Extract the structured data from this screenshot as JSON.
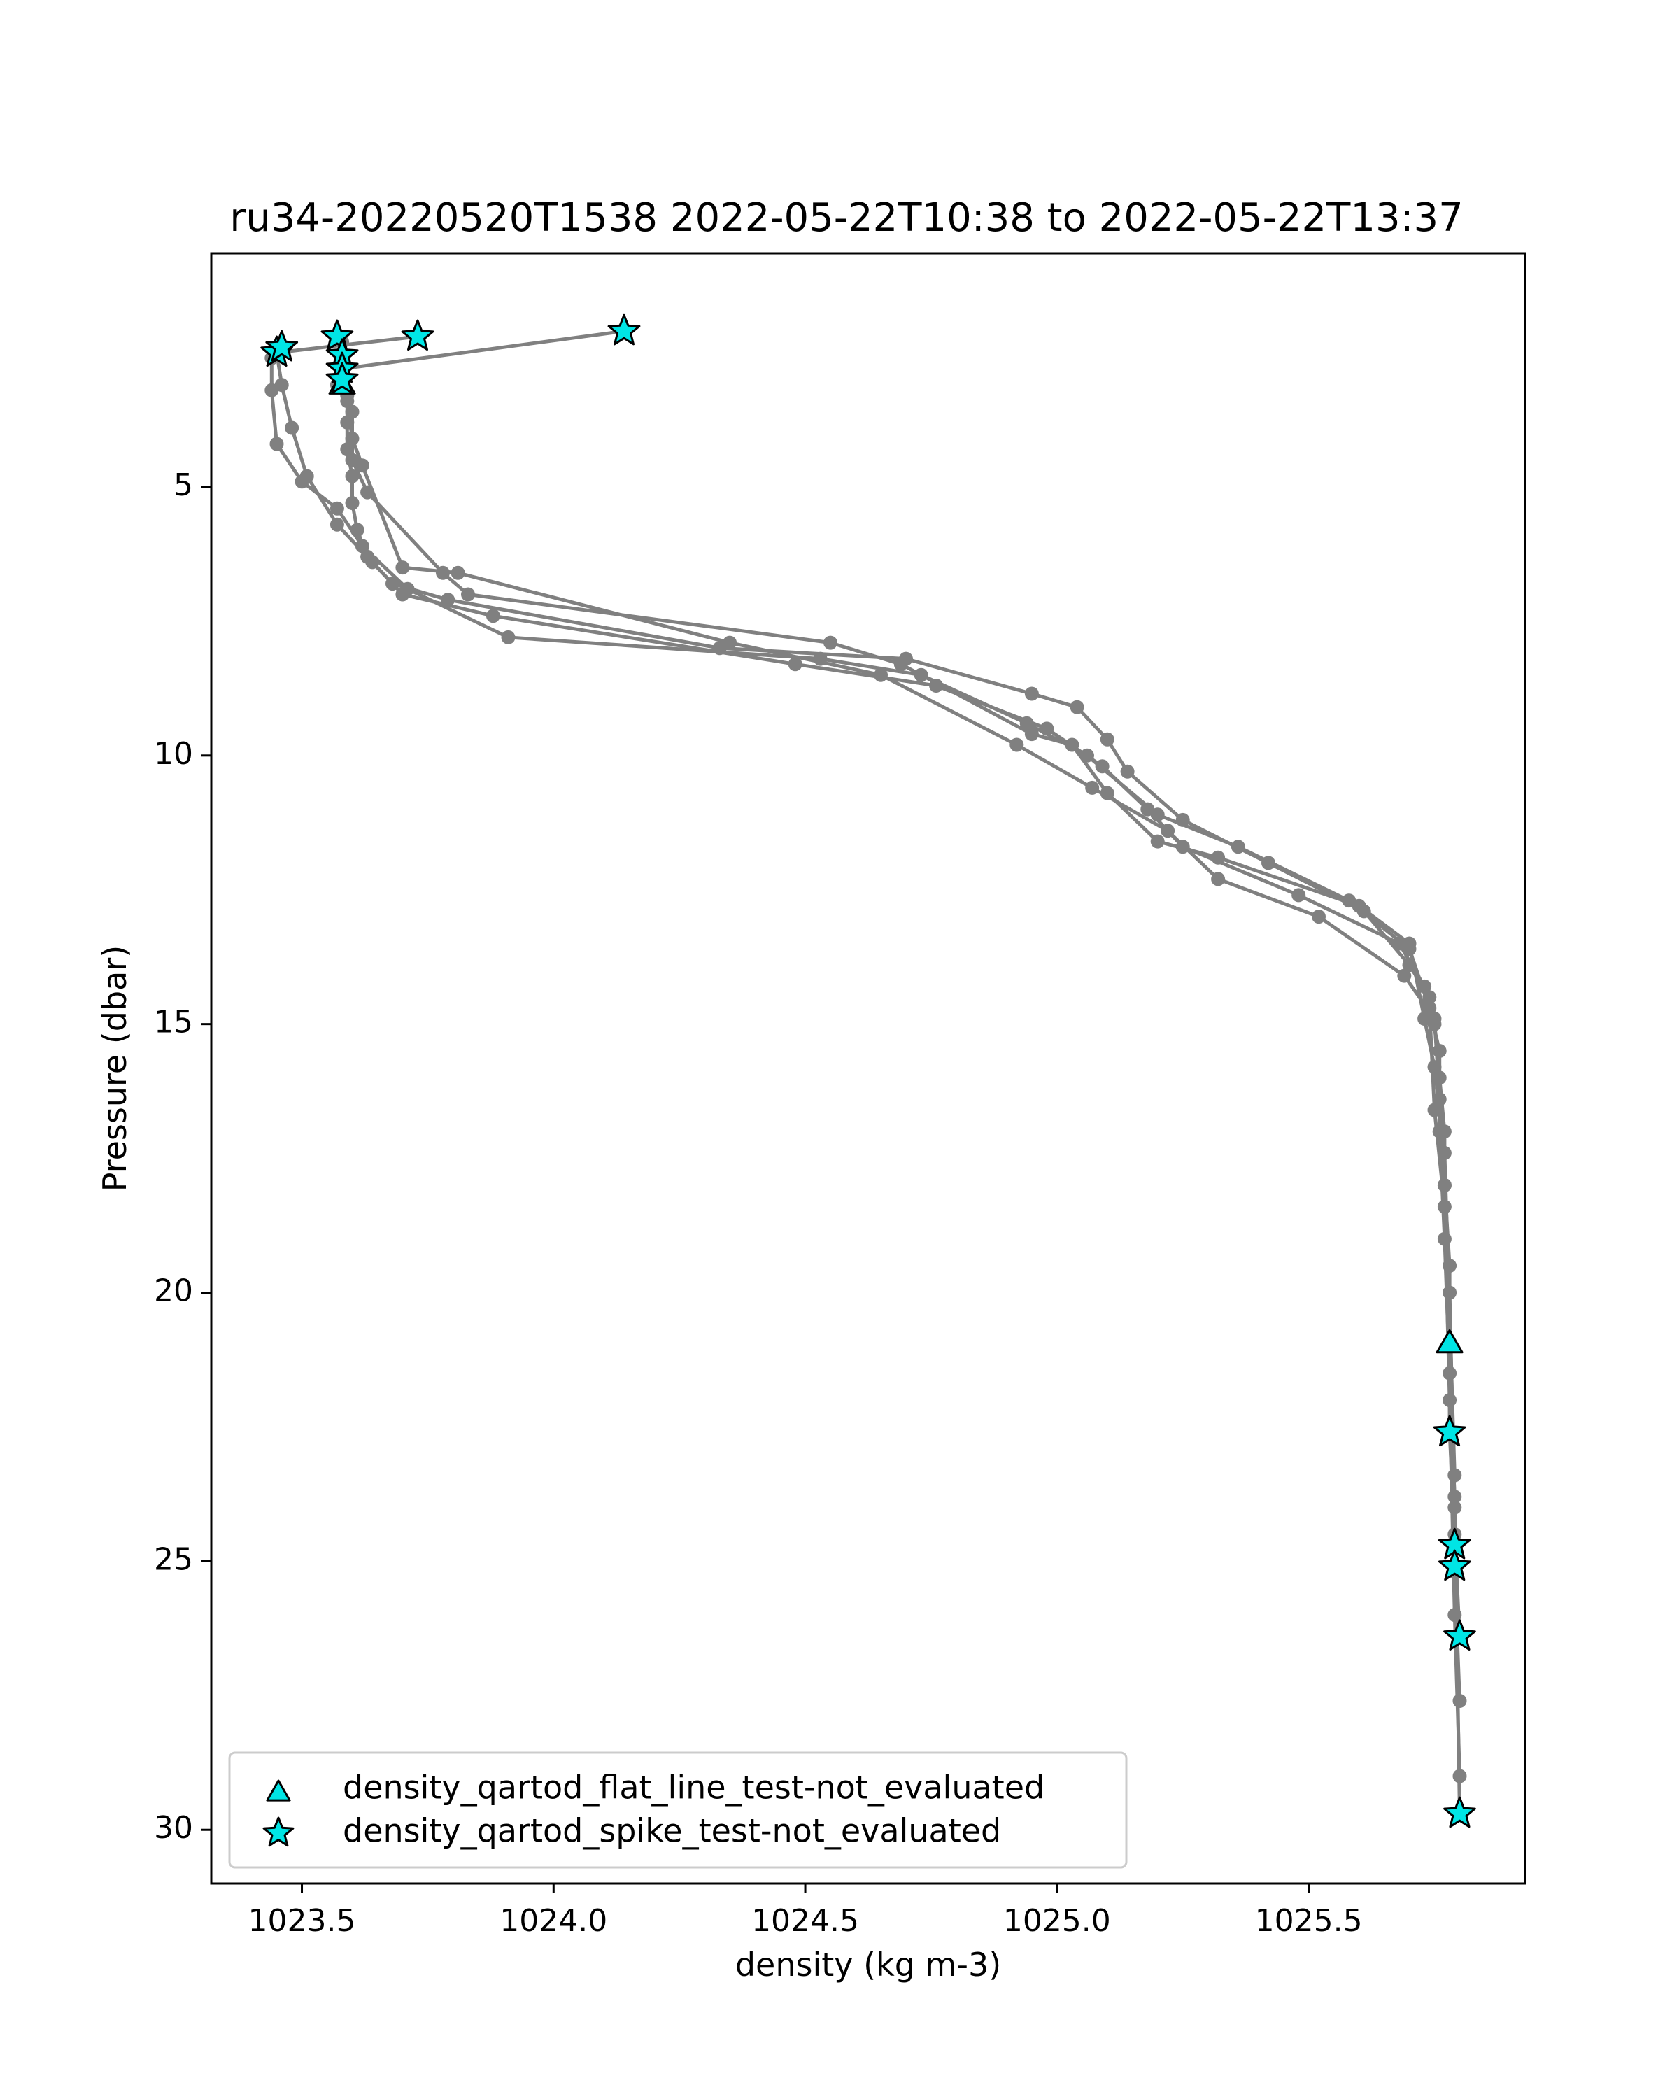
{
  "chart_data": {
    "type": "scatter",
    "title": "ru34-20220520T1538 2022-05-22T10:38 to 2022-05-22T13:37",
    "xlabel": "density (kg m-3)",
    "ylabel": "Pressure (dbar)",
    "xlim": [
      1023.32,
      1025.93
    ],
    "ylim": [
      31.0,
      0.65
    ],
    "y_inverted": true,
    "x_ticks": [
      1023.5,
      1024.0,
      1024.5,
      1025.0,
      1025.5
    ],
    "x_tick_labels": [
      "1023.5",
      "1024.0",
      "1024.5",
      "1025.0",
      "1025.5"
    ],
    "y_ticks": [
      5,
      10,
      15,
      20,
      25,
      30
    ],
    "y_tick_labels": [
      "5",
      "10",
      "15",
      "20",
      "25",
      "30"
    ],
    "grid": false,
    "legend_position": "lower-left",
    "colors": {
      "profile": "#808080",
      "flag_fill": "#00e5e5",
      "flag_edge": "#000000"
    },
    "profiles": [
      {
        "x": [
          1024.14,
          1023.58,
          1023.59,
          1023.59,
          1023.59,
          1023.6,
          1023.6,
          1023.61,
          1023.63,
          1023.68,
          1023.79,
          1024.33,
          1024.7,
          1024.95,
          1025.04,
          1025.1,
          1025.14,
          1025.25,
          1025.42,
          1025.61,
          1025.7,
          1025.74,
          1025.75,
          1025.76,
          1025.77,
          1025.77,
          1025.78,
          1025.78,
          1025.78,
          1025.79,
          1025.8
        ],
        "y": [
          2.1,
          2.8,
          3.3,
          3.8,
          4.3,
          4.8,
          5.3,
          5.8,
          6.3,
          6.8,
          7.1,
          8.0,
          8.2,
          8.85,
          9.1,
          9.7,
          10.3,
          11.2,
          12.0,
          12.9,
          13.9,
          14.5,
          15.0,
          16.0,
          17.0,
          18.0,
          19.5,
          21.0,
          22.6,
          24.5,
          26.4
        ]
      },
      {
        "x": [
          1023.73,
          1023.45,
          1023.46,
          1023.48,
          1023.51,
          1023.57,
          1023.64,
          1023.7,
          1023.88,
          1024.48,
          1024.76,
          1024.98,
          1025.09,
          1025.18,
          1025.25,
          1025.48,
          1025.68,
          1025.73,
          1025.76,
          1025.76,
          1025.77,
          1025.78,
          1025.79,
          1025.79,
          1025.8
        ],
        "y": [
          2.2,
          2.5,
          3.1,
          3.9,
          4.8,
          5.7,
          6.4,
          7.0,
          7.4,
          8.3,
          8.7,
          9.5,
          10.2,
          11.0,
          11.7,
          12.6,
          13.5,
          14.3,
          15.5,
          17.0,
          19.0,
          21.5,
          23.8,
          25.2,
          27.6
        ]
      },
      {
        "x": [
          1023.44,
          1023.44,
          1023.45,
          1023.5,
          1023.57,
          1023.62,
          1023.71,
          1023.91,
          1024.53,
          1024.73,
          1024.94,
          1025.06,
          1025.2,
          1025.36,
          1025.58,
          1025.7,
          1025.74,
          1025.75,
          1025.77,
          1025.78,
          1025.79,
          1025.8
        ],
        "y": [
          2.6,
          3.2,
          4.2,
          4.9,
          5.4,
          6.1,
          6.9,
          7.8,
          8.2,
          8.5,
          9.4,
          10.0,
          11.1,
          11.7,
          12.7,
          13.6,
          14.7,
          16.6,
          18.4,
          22.0,
          26.0,
          29.0
        ]
      },
      {
        "x": [
          1023.58,
          1023.59,
          1023.6,
          1023.62,
          1023.7,
          1023.81,
          1024.35,
          1024.65,
          1024.92,
          1025.07,
          1025.22,
          1025.32,
          1025.52,
          1025.69,
          1025.75,
          1025.76,
          1025.77,
          1025.78,
          1025.79,
          1025.8
        ],
        "y": [
          2.3,
          3.4,
          4.1,
          4.6,
          6.5,
          6.6,
          7.9,
          8.5,
          9.8,
          10.6,
          11.4,
          12.3,
          13.0,
          14.1,
          14.9,
          16.4,
          18.0,
          20.0,
          24.0,
          29.7
        ]
      },
      {
        "x": [
          1023.57,
          1023.6,
          1023.6,
          1023.63,
          1023.78,
          1023.83,
          1024.55,
          1024.69,
          1024.95,
          1025.03,
          1025.1,
          1025.2,
          1025.32,
          1025.6,
          1025.7,
          1025.73,
          1025.75,
          1025.77,
          1025.79
        ],
        "y": [
          3.1,
          3.6,
          4.5,
          5.1,
          6.6,
          7.0,
          7.9,
          8.3,
          9.6,
          9.8,
          10.7,
          11.6,
          11.9,
          12.8,
          13.5,
          14.9,
          15.8,
          17.4,
          23.4
        ]
      }
    ],
    "series": [
      {
        "name": "density_qartod_flat_line_test-not_evaluated",
        "marker": "triangle",
        "points": [
          {
            "x": 1025.78,
            "y": 20.95
          },
          {
            "x": 1023.58,
            "y": 3.1
          }
        ]
      },
      {
        "name": "density_qartod_spike_test-not_evaluated",
        "marker": "star",
        "points": [
          {
            "x": 1024.14,
            "y": 2.1
          },
          {
            "x": 1023.73,
            "y": 2.2
          },
          {
            "x": 1023.57,
            "y": 2.2
          },
          {
            "x": 1023.45,
            "y": 2.5
          },
          {
            "x": 1023.46,
            "y": 2.4
          },
          {
            "x": 1023.58,
            "y": 2.55
          },
          {
            "x": 1023.58,
            "y": 2.8
          },
          {
            "x": 1023.58,
            "y": 3.0
          },
          {
            "x": 1025.78,
            "y": 22.6
          },
          {
            "x": 1025.79,
            "y": 24.7
          },
          {
            "x": 1025.79,
            "y": 25.1
          },
          {
            "x": 1025.8,
            "y": 26.4
          },
          {
            "x": 1025.8,
            "y": 29.7
          }
        ]
      }
    ]
  }
}
